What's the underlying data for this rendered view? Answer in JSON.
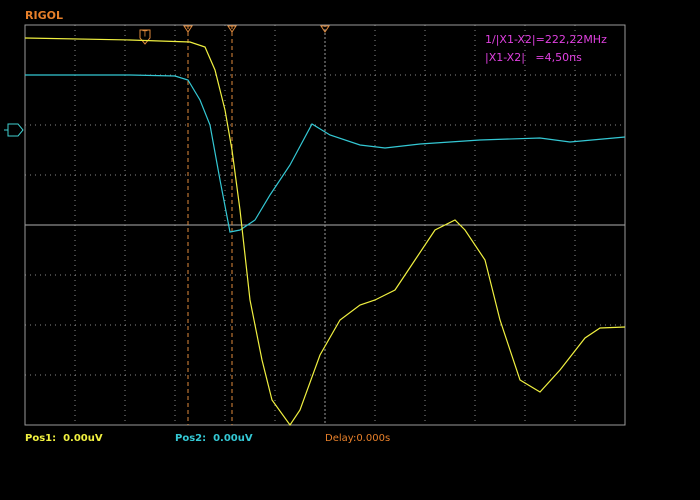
{
  "header": {
    "brand": "RIGOL"
  },
  "cursor_readout": {
    "frequency": "1/|X1-X2|=222,22MHz",
    "delta": "|X1-X2|   =4,50ns"
  },
  "footer": {
    "pos1": "Pos1:  0.00uV",
    "pos2": "Pos2:  0.00uV",
    "delay": "Delay:0.000s"
  }
}
